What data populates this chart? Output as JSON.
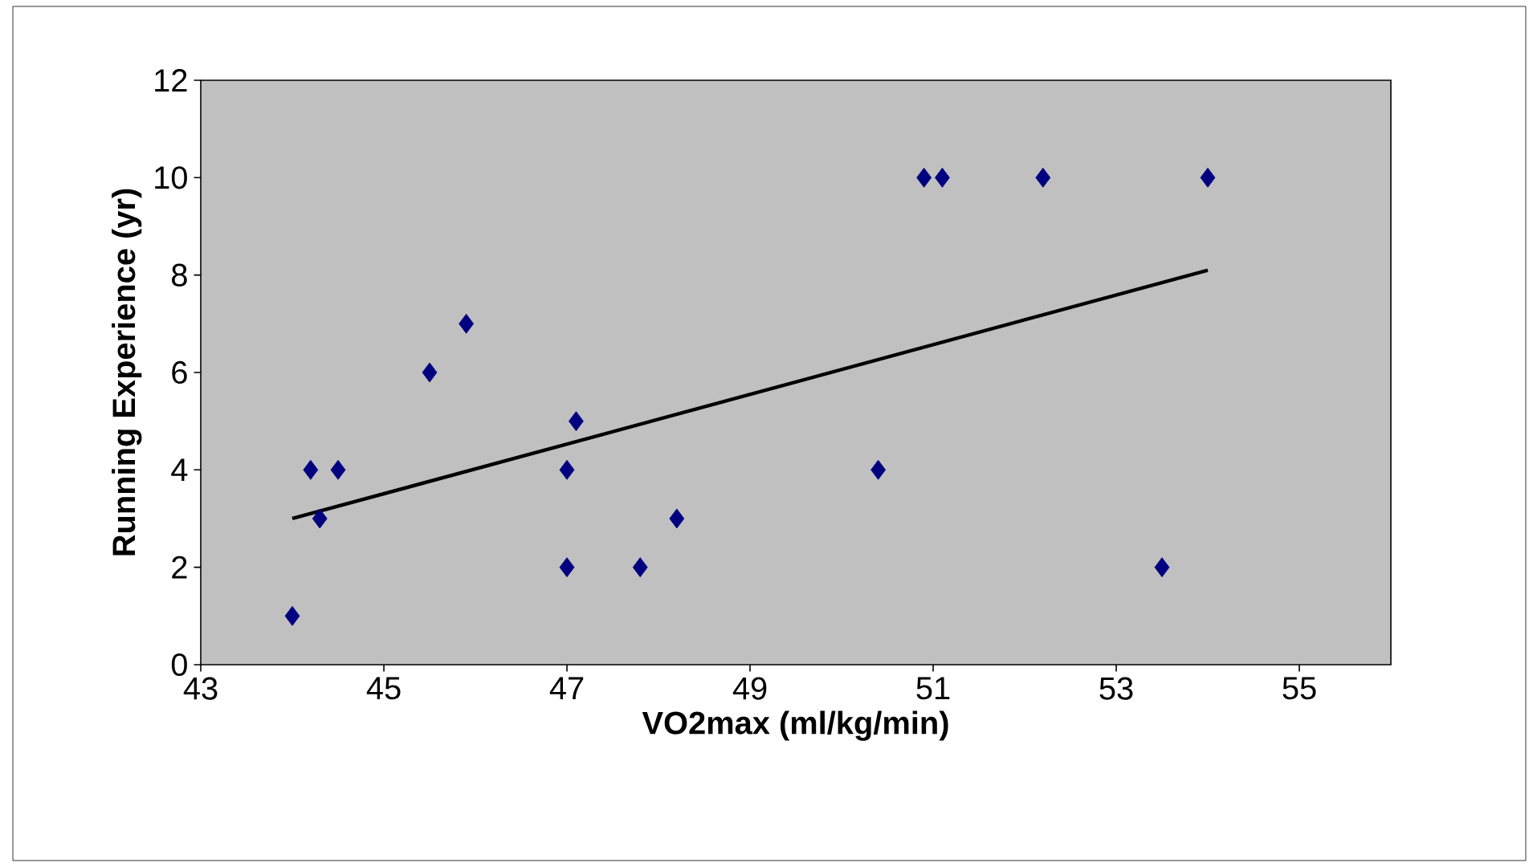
{
  "chart_data": {
    "type": "scatter",
    "xlabel": "VO2max (ml/kg/min)",
    "ylabel": "Running Experience (yr)",
    "xlim": [
      43,
      56
    ],
    "xticks": [
      43,
      45,
      47,
      49,
      51,
      53,
      55
    ],
    "ylim": [
      0,
      12
    ],
    "yticks": [
      0,
      2,
      4,
      6,
      8,
      10,
      12
    ],
    "grid": false,
    "series": [
      {
        "color": "#000080",
        "marker": "diamond",
        "x": [
          44.0,
          44.2,
          44.3,
          44.5,
          45.5,
          45.9,
          47.0,
          47.1,
          47.0,
          47.8,
          48.2,
          50.4,
          50.9,
          51.1,
          52.2,
          53.5,
          54.0
        ],
        "values": [
          1,
          4,
          3,
          4,
          6,
          7,
          4,
          5,
          2,
          2,
          3,
          4,
          10,
          10,
          10,
          2,
          10
        ]
      },
      {
        "type": "line",
        "color": "#000000",
        "marker": "none",
        "x": [
          44,
          54
        ],
        "values": [
          3.0,
          8.1
        ]
      }
    ]
  }
}
